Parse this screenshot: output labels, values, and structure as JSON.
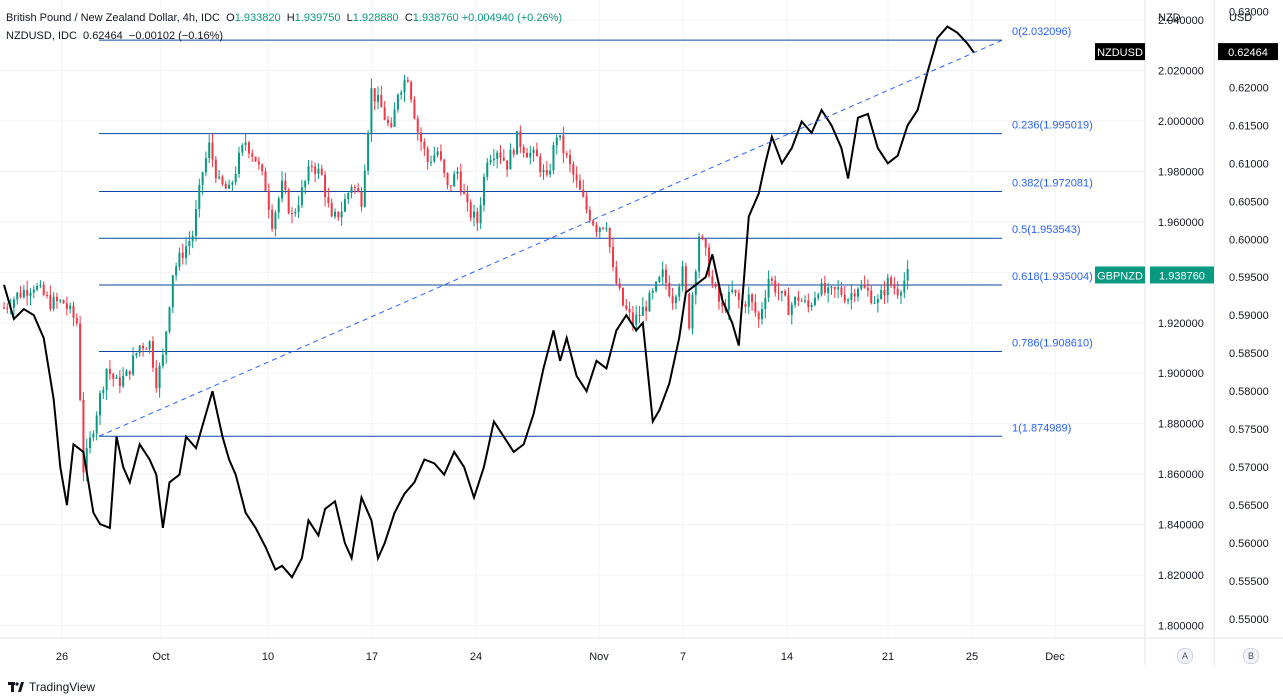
{
  "header": {
    "symbol_title": "British Pound / New Zealand Dollar, 4h, IDC",
    "ohlc": [
      {
        "k": "O",
        "v": "1.933820"
      },
      {
        "k": "H",
        "v": "1.939750"
      },
      {
        "k": "L",
        "v": "1.928880"
      },
      {
        "k": "C",
        "v": "1.938760"
      }
    ],
    "change": "+0.004940 (+0.26%)",
    "overlay_symbol": "NZDUSD, IDC",
    "overlay_value": "0.62464",
    "overlay_change": "−0.00102 (−0.16%)"
  },
  "axis_headers": {
    "left": "NZD",
    "right": "USD"
  },
  "brand": "TradingView",
  "scale_buttons": [
    "A",
    "B"
  ],
  "colors": {
    "up": "#089981",
    "down": "#f23645",
    "fib": "#2962ff",
    "overlay": "#000000",
    "trend": "#2962ff"
  },
  "chart_data": {
    "type": "line",
    "x_ticks": [
      "26",
      "Oct",
      "10",
      "17",
      "24",
      "Nov",
      "7",
      "14",
      "21",
      "25",
      "Dec"
    ],
    "y_ticks_nzd": [
      "2.040000",
      "2.020000",
      "2.000000",
      "1.980000",
      "1.960000",
      "1.940000",
      "1.920000",
      "1.900000",
      "1.880000",
      "1.860000",
      "1.840000",
      "1.820000",
      "1.800000"
    ],
    "y_ticks_usd": [
      "0.63000",
      "0.62500",
      "0.62000",
      "0.61500",
      "0.61000",
      "0.60500",
      "0.60000",
      "0.59500",
      "0.59000",
      "0.58500",
      "0.58000",
      "0.57500",
      "0.57000",
      "0.56500",
      "0.56000",
      "0.55500",
      "0.55000"
    ],
    "ylim_nzd": [
      1.795,
      2.048
    ],
    "ylim_usd": [
      0.5475,
      0.6315
    ],
    "fib_levels": [
      {
        "label": "0(2.032096)",
        "value": 2.032096
      },
      {
        "label": "0.236(1.995019)",
        "value": 1.995019
      },
      {
        "label": "0.382(1.972081)",
        "value": 1.972081
      },
      {
        "label": "0.5(1.953543)",
        "value": 1.953543
      },
      {
        "label": "0.618(1.935004)",
        "value": 1.935004
      },
      {
        "label": "0.786(1.908610)",
        "value": 1.90861
      },
      {
        "label": "1(1.874989)",
        "value": 1.874989
      }
    ],
    "series": [
      {
        "name": "GBPNZD",
        "kind": "candles",
        "last_label": "1.938760",
        "close_points": [
          [
            0,
            1.926
          ],
          [
            4,
            1.931
          ],
          [
            9,
            1.935
          ],
          [
            14,
            1.928
          ],
          [
            18,
            1.928
          ],
          [
            22,
            1.92
          ],
          [
            24,
            1.862
          ],
          [
            26,
            1.873
          ],
          [
            28,
            1.885
          ],
          [
            31,
            1.902
          ],
          [
            34,
            1.896
          ],
          [
            37,
            1.899
          ],
          [
            41,
            1.911
          ],
          [
            44,
            1.912
          ],
          [
            46,
            1.897
          ],
          [
            48,
            1.906
          ],
          [
            51,
            1.94
          ],
          [
            54,
            1.948
          ],
          [
            57,
            1.955
          ],
          [
            60,
            1.98
          ],
          [
            62,
            1.99
          ],
          [
            65,
            1.975
          ],
          [
            68,
            1.972
          ],
          [
            71,
            1.985
          ],
          [
            73,
            1.992
          ],
          [
            76,
            1.985
          ],
          [
            79,
            1.974
          ],
          [
            81,
            1.96
          ],
          [
            84,
            1.974
          ],
          [
            87,
            1.962
          ],
          [
            90,
            1.972
          ],
          [
            93,
            1.983
          ],
          [
            96,
            1.978
          ],
          [
            99,
            1.96
          ],
          [
            102,
            1.965
          ],
          [
            105,
            1.975
          ],
          [
            108,
            1.969
          ],
          [
            111,
            2.012
          ],
          [
            114,
            2.005
          ],
          [
            117,
            1.995
          ],
          [
            119,
            2.012
          ],
          [
            122,
            2.018
          ],
          [
            125,
            1.996
          ],
          [
            128,
            1.984
          ],
          [
            131,
            1.988
          ],
          [
            134,
            1.973
          ],
          [
            137,
            1.98
          ],
          [
            140,
            1.965
          ],
          [
            143,
            1.96
          ],
          [
            146,
            1.986
          ],
          [
            149,
            1.989
          ],
          [
            152,
            1.983
          ],
          [
            155,
            1.993
          ],
          [
            158,
            1.988
          ],
          [
            161,
            1.985
          ],
          [
            164,
            1.976
          ],
          [
            167,
            1.995
          ],
          [
            170,
            1.985
          ],
          [
            173,
            1.975
          ],
          [
            176,
            1.965
          ],
          [
            179,
            1.958
          ],
          [
            182,
            1.96
          ],
          [
            184,
            1.94
          ],
          [
            187,
            1.927
          ],
          [
            190,
            1.92
          ],
          [
            193,
            1.925
          ],
          [
            196,
            1.931
          ],
          [
            199,
            1.939
          ],
          [
            202,
            1.93
          ],
          [
            205,
            1.94
          ],
          [
            207,
            1.92
          ],
          [
            210,
            1.955
          ],
          [
            212,
            1.947
          ],
          [
            214,
            1.935
          ],
          [
            217,
            1.925
          ],
          [
            220,
            1.932
          ],
          [
            223,
            1.927
          ],
          [
            225,
            1.93
          ],
          [
            228,
            1.921
          ],
          [
            231,
            1.938
          ],
          [
            234,
            1.932
          ],
          [
            237,
            1.926
          ],
          [
            240,
            1.93
          ],
          [
            243,
            1.926
          ],
          [
            246,
            1.934
          ],
          [
            249,
            1.931
          ],
          [
            252,
            1.933
          ],
          [
            255,
            1.93
          ],
          [
            258,
            1.935
          ],
          [
            261,
            1.932
          ],
          [
            264,
            1.928
          ],
          [
            267,
            1.936
          ],
          [
            270,
            1.933
          ],
          [
            273,
            1.9388
          ]
        ]
      },
      {
        "name": "NZDUSD",
        "kind": "line",
        "last_label": "0.62464",
        "close_points": [
          [
            0,
            0.594
          ],
          [
            3,
            0.5895
          ],
          [
            6,
            0.5908
          ],
          [
            9,
            0.59
          ],
          [
            12,
            0.587
          ],
          [
            15,
            0.579
          ],
          [
            17,
            0.57
          ],
          [
            19,
            0.565
          ],
          [
            21,
            0.573
          ],
          [
            24,
            0.572
          ],
          [
            27,
            0.564
          ],
          [
            29,
            0.5625
          ],
          [
            32,
            0.562
          ],
          [
            34,
            0.574
          ],
          [
            36,
            0.57
          ],
          [
            38,
            0.568
          ],
          [
            41,
            0.573
          ],
          [
            44,
            0.571
          ],
          [
            46,
            0.569
          ],
          [
            48,
            0.562
          ],
          [
            50,
            0.568
          ],
          [
            53,
            0.569
          ],
          [
            55,
            0.574
          ],
          [
            58,
            0.5725
          ],
          [
            61,
            0.577
          ],
          [
            63,
            0.58
          ],
          [
            66,
            0.574
          ],
          [
            68,
            0.571
          ],
          [
            70,
            0.569
          ],
          [
            73,
            0.564
          ],
          [
            76,
            0.562
          ],
          [
            79,
            0.5595
          ],
          [
            82,
            0.5565
          ],
          [
            84,
            0.557
          ],
          [
            87,
            0.5555
          ],
          [
            90,
            0.558
          ],
          [
            92,
            0.563
          ],
          [
            95,
            0.561
          ],
          [
            97,
            0.5645
          ],
          [
            100,
            0.5655
          ],
          [
            103,
            0.56
          ],
          [
            105,
            0.558
          ],
          [
            108,
            0.566
          ],
          [
            111,
            0.563
          ],
          [
            113,
            0.558
          ],
          [
            115,
            0.56
          ],
          [
            118,
            0.564
          ],
          [
            121,
            0.5665
          ],
          [
            124,
            0.568
          ],
          [
            127,
            0.571
          ],
          [
            130,
            0.5705
          ],
          [
            133,
            0.569
          ],
          [
            136,
            0.572
          ],
          [
            139,
            0.57
          ],
          [
            142,
            0.566
          ],
          [
            145,
            0.57
          ],
          [
            148,
            0.576
          ],
          [
            151,
            0.574
          ],
          [
            154,
            0.572
          ],
          [
            157,
            0.573
          ],
          [
            160,
            0.577
          ],
          [
            163,
            0.583
          ],
          [
            166,
            0.588
          ],
          [
            168,
            0.584
          ],
          [
            170,
            0.587
          ],
          [
            173,
            0.582
          ],
          [
            176,
            0.58
          ],
          [
            179,
            0.584
          ],
          [
            182,
            0.583
          ],
          [
            185,
            0.588
          ],
          [
            188,
            0.59
          ],
          [
            191,
            0.588
          ],
          [
            193,
            0.589
          ],
          [
            196,
            0.576
          ],
          [
            198,
            0.5775
          ],
          [
            201,
            0.581
          ],
          [
            204,
            0.587
          ],
          [
            206,
            0.593
          ],
          [
            209,
            0.594
          ],
          [
            212,
            0.595
          ],
          [
            214,
            0.598
          ],
          [
            217,
            0.592
          ],
          [
            220,
            0.589
          ],
          [
            222,
            0.586
          ],
          [
            225,
            0.603
          ],
          [
            228,
            0.606
          ],
          [
            230,
            0.61
          ],
          [
            232,
            0.6135
          ],
          [
            235,
            0.61
          ],
          [
            238,
            0.612
          ],
          [
            241,
            0.6155
          ],
          [
            244,
            0.614
          ],
          [
            247,
            0.617
          ],
          [
            250,
            0.615
          ],
          [
            253,
            0.612
          ],
          [
            255,
            0.608
          ],
          [
            258,
            0.616
          ],
          [
            261,
            0.6165
          ],
          [
            264,
            0.612
          ],
          [
            267,
            0.61
          ],
          [
            270,
            0.611
          ],
          [
            273,
            0.615
          ],
          [
            276,
            0.617
          ],
          [
            279,
            0.622
          ],
          [
            282,
            0.6265
          ],
          [
            285,
            0.628
          ],
          [
            288,
            0.6272
          ],
          [
            291,
            0.6258
          ],
          [
            293,
            0.6246
          ]
        ]
      }
    ],
    "trendline": {
      "from": [
        "Sep 28",
        1.875
      ],
      "to": [
        "Nov 26",
        2.032
      ]
    }
  }
}
